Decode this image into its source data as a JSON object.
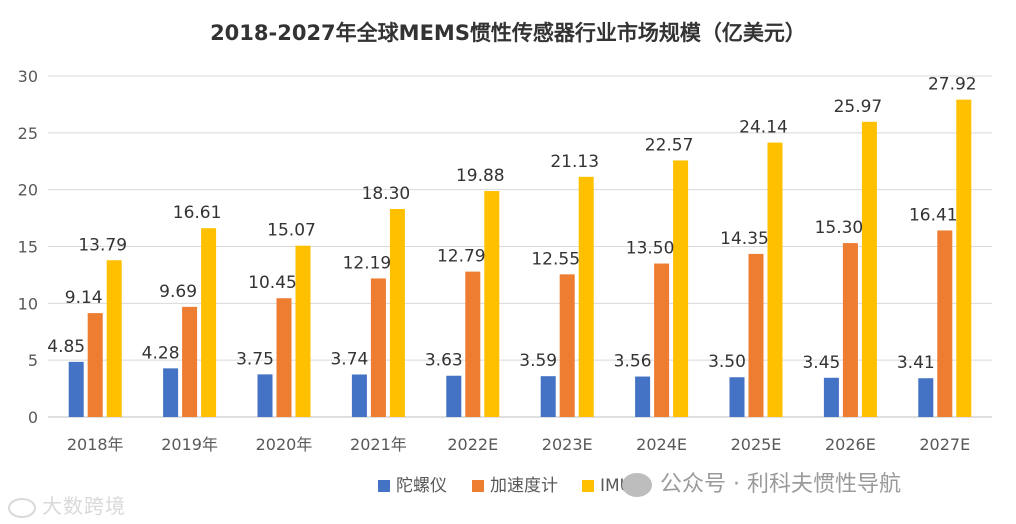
{
  "chart_data": {
    "type": "bar",
    "title": "2018-2027年全球MEMS惯性传感器行业市场规模（亿美元）",
    "xlabel": "",
    "ylabel": "",
    "ylim": [
      0,
      30
    ],
    "yticks": [
      0,
      5,
      10,
      15,
      20,
      25,
      30
    ],
    "grid": true,
    "legend_position": "bottom",
    "categories": [
      "2018年",
      "2019年",
      "2020年",
      "2021年",
      "2022E",
      "2023E",
      "2024E",
      "2025E",
      "2026E",
      "2027E"
    ],
    "series": [
      {
        "name": "陀螺仪",
        "color": "#4472c4",
        "values": [
          4.85,
          4.28,
          3.75,
          3.74,
          3.63,
          3.59,
          3.56,
          3.5,
          3.45,
          3.41
        ],
        "labels": [
          "4.85",
          "4.28",
          "3.75",
          "3.74",
          "3.63",
          "3.59",
          "3.56",
          "3.50",
          "3.45",
          "3.41"
        ]
      },
      {
        "name": "加速度计",
        "color": "#ed7d31",
        "values": [
          9.14,
          9.69,
          10.45,
          12.19,
          12.79,
          12.55,
          13.5,
          14.35,
          15.3,
          16.41
        ],
        "labels": [
          "9.14",
          "9.69",
          "10.45",
          "12.19",
          "12.79",
          "12.55",
          "13.50",
          "14.35",
          "15.30",
          "16.41"
        ]
      },
      {
        "name": "IMU",
        "color": "#ffc000",
        "values": [
          13.79,
          16.61,
          15.07,
          18.3,
          19.88,
          21.13,
          22.57,
          24.14,
          25.97,
          27.92
        ],
        "labels": [
          "13.79",
          "16.61",
          "15.07",
          "18.30",
          "19.88",
          "21.13",
          "22.57",
          "24.14",
          "25.97",
          "27.92"
        ]
      }
    ]
  },
  "watermarks": {
    "left": "大数跨境",
    "right": "公众号 · 利科夫惯性导航"
  }
}
